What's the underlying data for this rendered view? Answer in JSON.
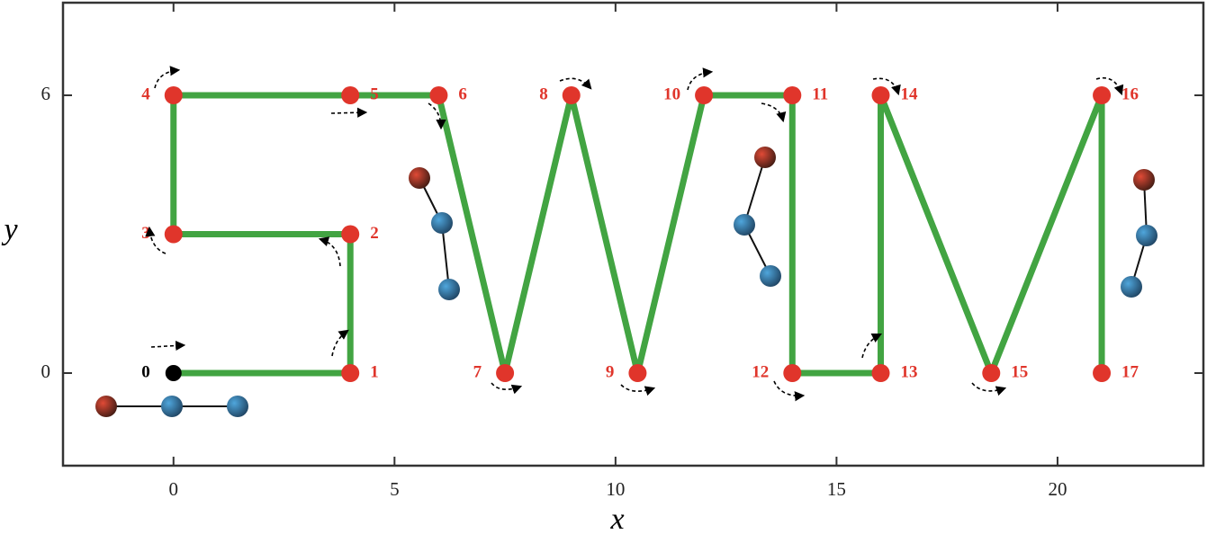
{
  "chart_data": {
    "type": "line",
    "x_label": "x",
    "y_label": "y",
    "x": [
      0,
      4,
      4,
      0,
      0,
      4,
      6,
      7.5,
      9,
      10.5,
      12,
      14,
      14,
      16,
      16,
      18.5,
      21,
      21
    ],
    "values": [
      0,
      0,
      3,
      3,
      6,
      6,
      6,
      0,
      6,
      0,
      6,
      6,
      0,
      0,
      6,
      0,
      6,
      0
    ],
    "point_labels": [
      "0",
      "1",
      "2",
      "3",
      "4",
      "5",
      "6",
      "7",
      "8",
      "9",
      "10",
      "11",
      "12",
      "13",
      "14",
      "15",
      "16",
      "17"
    ],
    "color": "#2e9a2e",
    "marker_color": "#e0352b",
    "start_color": "#000000",
    "xlim": [
      -2.5,
      23.3
    ],
    "ylim": [
      -2,
      8
    ],
    "xticks": [
      0,
      5,
      10,
      15,
      20
    ],
    "yticks": [
      0,
      6
    ]
  }
}
